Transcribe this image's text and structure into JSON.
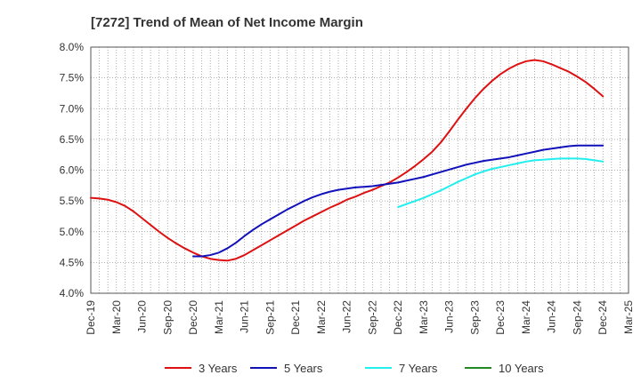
{
  "chart_data": {
    "type": "line",
    "title": "[7272]  Trend of Mean of Net Income Margin",
    "xlabel": "",
    "ylabel": "",
    "x_ticks": [
      "Dec-19",
      "Mar-20",
      "Jun-20",
      "Sep-20",
      "Dec-20",
      "Mar-21",
      "Jun-21",
      "Sep-21",
      "Dec-21",
      "Mar-22",
      "Jun-22",
      "Sep-22",
      "Dec-22",
      "Mar-23",
      "Jun-23",
      "Sep-23",
      "Dec-23",
      "Mar-24",
      "Jun-24",
      "Sep-24",
      "Dec-24",
      "Mar-25"
    ],
    "y_ticks": [
      "4.0%",
      "4.5%",
      "5.0%",
      "5.5%",
      "6.0%",
      "6.5%",
      "7.0%",
      "7.5%",
      "8.0%"
    ],
    "ylim": [
      4.0,
      8.0
    ],
    "grid": true,
    "legend_position": "bottom",
    "series": [
      {
        "name": "3 Years",
        "color": "#dd1111",
        "x": [
          "Dec-19",
          "Jan-20",
          "Feb-20",
          "Mar-20",
          "Apr-20",
          "May-20",
          "Jun-20",
          "Jul-20",
          "Aug-20",
          "Sep-20",
          "Oct-20",
          "Nov-20",
          "Dec-20",
          "Jan-21",
          "Feb-21",
          "Mar-21",
          "Apr-21",
          "May-21",
          "Jun-21",
          "Jul-21",
          "Aug-21",
          "Sep-21",
          "Oct-21",
          "Nov-21",
          "Dec-21",
          "Jan-22",
          "Feb-22",
          "Mar-22",
          "Apr-22",
          "May-22",
          "Jun-22",
          "Jul-22",
          "Aug-22",
          "Sep-22",
          "Oct-22",
          "Nov-22",
          "Dec-22",
          "Jan-23",
          "Feb-23",
          "Mar-23",
          "Apr-23",
          "May-23",
          "Jun-23",
          "Jul-23",
          "Aug-23",
          "Sep-23",
          "Oct-23",
          "Nov-23",
          "Dec-23",
          "Jan-24",
          "Feb-24",
          "Mar-24",
          "Apr-24",
          "May-24",
          "Jun-24",
          "Jul-24",
          "Aug-24",
          "Sep-24",
          "Oct-24",
          "Nov-24",
          "Dec-24"
        ],
        "values": [
          5.55,
          5.54,
          5.52,
          5.48,
          5.42,
          5.33,
          5.22,
          5.11,
          5.0,
          4.9,
          4.81,
          4.73,
          4.66,
          4.6,
          4.56,
          4.54,
          4.53,
          4.56,
          4.62,
          4.7,
          4.78,
          4.86,
          4.94,
          5.02,
          5.1,
          5.18,
          5.25,
          5.32,
          5.39,
          5.45,
          5.52,
          5.57,
          5.63,
          5.68,
          5.74,
          5.8,
          5.88,
          5.97,
          6.07,
          6.18,
          6.3,
          6.45,
          6.63,
          6.82,
          7.0,
          7.17,
          7.32,
          7.45,
          7.56,
          7.65,
          7.72,
          7.77,
          7.79,
          7.77,
          7.72,
          7.66,
          7.6,
          7.52,
          7.43,
          7.32,
          7.2
        ]
      },
      {
        "name": "5 Years",
        "color": "#1111bb",
        "x": [
          "Dec-20",
          "Jan-21",
          "Feb-21",
          "Mar-21",
          "Apr-21",
          "May-21",
          "Jun-21",
          "Jul-21",
          "Aug-21",
          "Sep-21",
          "Oct-21",
          "Nov-21",
          "Dec-21",
          "Jan-22",
          "Feb-22",
          "Mar-22",
          "Apr-22",
          "May-22",
          "Jun-22",
          "Jul-22",
          "Aug-22",
          "Sep-22",
          "Oct-22",
          "Nov-22",
          "Dec-22",
          "Jan-23",
          "Feb-23",
          "Mar-23",
          "Apr-23",
          "May-23",
          "Jun-23",
          "Jul-23",
          "Aug-23",
          "Sep-23",
          "Oct-23",
          "Nov-23",
          "Dec-23",
          "Jan-24",
          "Feb-24",
          "Mar-24",
          "Apr-24",
          "May-24",
          "Jun-24",
          "Jul-24",
          "Aug-24",
          "Sep-24",
          "Oct-24",
          "Nov-24",
          "Dec-24"
        ],
        "values": [
          4.6,
          4.6,
          4.62,
          4.66,
          4.73,
          4.82,
          4.93,
          5.03,
          5.12,
          5.2,
          5.28,
          5.36,
          5.43,
          5.5,
          5.56,
          5.61,
          5.65,
          5.68,
          5.7,
          5.72,
          5.73,
          5.74,
          5.76,
          5.78,
          5.8,
          5.83,
          5.86,
          5.89,
          5.93,
          5.97,
          6.01,
          6.05,
          6.09,
          6.12,
          6.15,
          6.17,
          6.19,
          6.21,
          6.24,
          6.27,
          6.3,
          6.33,
          6.35,
          6.37,
          6.39,
          6.4,
          6.4,
          6.4,
          6.4
        ]
      },
      {
        "name": "7 Years",
        "color": "#22eeee",
        "x": [
          "Dec-22",
          "Jan-23",
          "Feb-23",
          "Mar-23",
          "Apr-23",
          "May-23",
          "Jun-23",
          "Jul-23",
          "Aug-23",
          "Sep-23",
          "Oct-23",
          "Nov-23",
          "Dec-23",
          "Jan-24",
          "Feb-24",
          "Mar-24",
          "Apr-24",
          "May-24",
          "Jun-24",
          "Jul-24",
          "Aug-24",
          "Sep-24",
          "Oct-24",
          "Nov-24",
          "Dec-24"
        ],
        "values": [
          5.4,
          5.45,
          5.5,
          5.55,
          5.61,
          5.67,
          5.74,
          5.81,
          5.87,
          5.93,
          5.98,
          6.02,
          6.05,
          6.08,
          6.11,
          6.14,
          6.16,
          6.17,
          6.18,
          6.19,
          6.19,
          6.19,
          6.18,
          6.16,
          6.14
        ]
      },
      {
        "name": "10 Years",
        "color": "#228822",
        "x": [],
        "values": []
      }
    ]
  }
}
